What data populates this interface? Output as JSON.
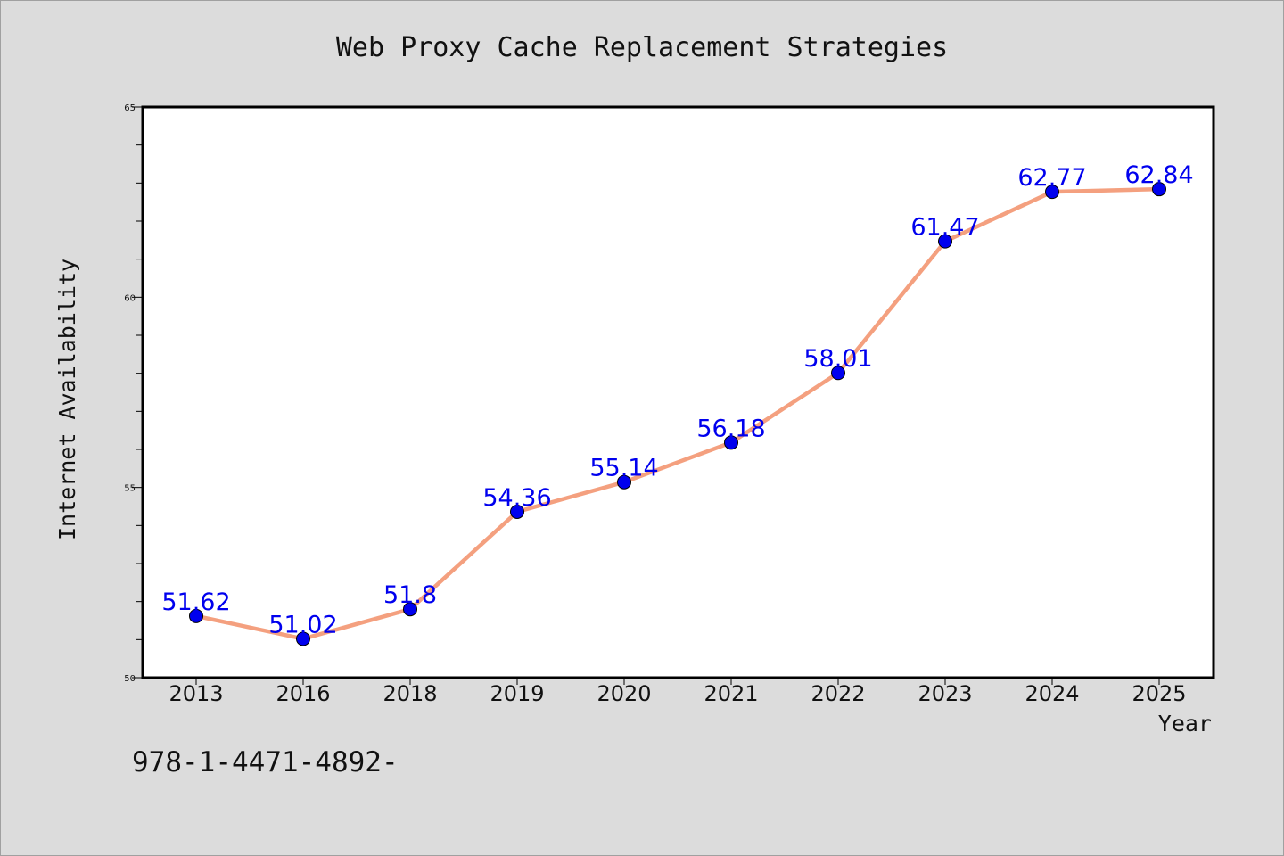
{
  "chart_data": {
    "type": "line",
    "title": "Web Proxy Cache Replacement Strategies",
    "xlabel": "Year",
    "ylabel": "Internet Availability",
    "categories": [
      "2013",
      "2016",
      "2018",
      "2019",
      "2020",
      "2021",
      "2022",
      "2023",
      "2024",
      "2025"
    ],
    "series": [
      {
        "values": [
          51.62,
          51.02,
          51.8,
          54.36,
          55.14,
          56.18,
          58.01,
          61.47,
          62.77,
          62.84
        ],
        "labels": [
          "51.62",
          "51.02",
          "51.8",
          "54.36",
          "55.14",
          "56.18",
          "58.01",
          "61.47",
          "62.77",
          "62.84"
        ]
      }
    ],
    "ylim": [
      50,
      65
    ],
    "yticks": [
      "50",
      "55",
      "60",
      "65"
    ],
    "grid": false,
    "legend": "none"
  },
  "footnote": "978-1-4471-4892-",
  "colors": {
    "background": "#dcdcdc",
    "plot_background": "#ffffff",
    "line": "#f4a07f",
    "marker": "#0000ee",
    "data_label": "#0000ee",
    "axis": "#000000"
  }
}
